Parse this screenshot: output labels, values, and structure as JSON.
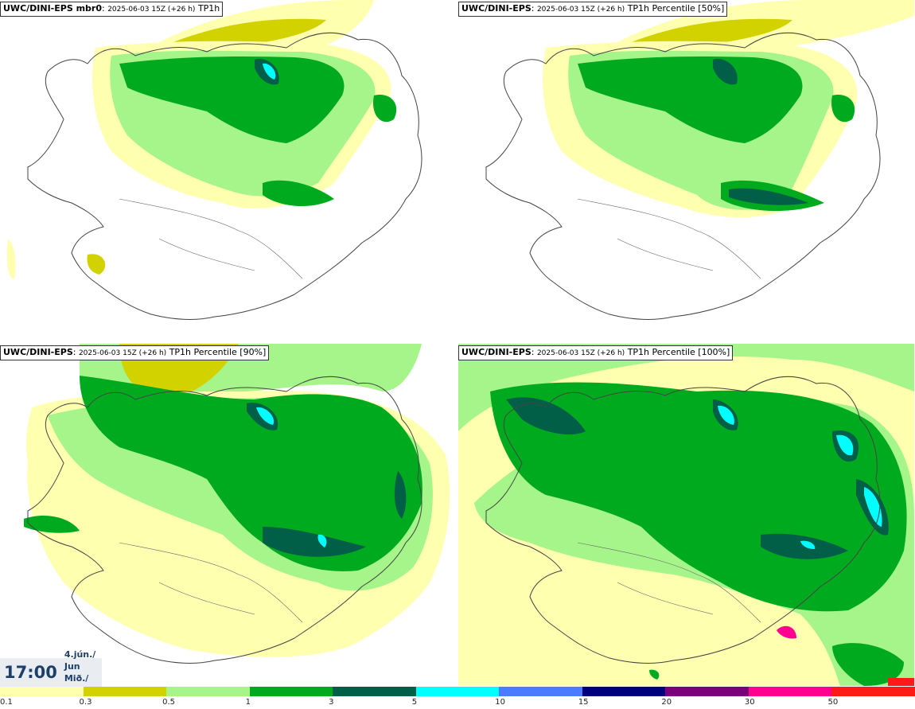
{
  "panels": [
    {
      "model": "UWC/DINI-EPS mbr0",
      "run": "2025-06-03 15Z (+26 h)",
      "field": "TP1h"
    },
    {
      "model": "UWC/DINI-EPS",
      "run": "2025-06-03 15Z (+26 h)",
      "field": "TP1h Percentile [50%]"
    },
    {
      "model": "UWC/DINI-EPS",
      "run": "2025-06-03 15Z (+26 h)",
      "field": "TP1h Percentile [90%]"
    },
    {
      "model": "UWC/DINI-EPS",
      "run": "2025-06-03 15Z (+26 h)",
      "field": "TP1h Percentile [100%]"
    }
  ],
  "valid_time": {
    "clock": "17:00",
    "date_line": "4.jún./ Jun",
    "day_line": "Mið./ Wed"
  },
  "legend": {
    "ticks": [
      "0.1",
      "0.3",
      "0.5",
      "1",
      "3",
      "5",
      "10",
      "15",
      "20",
      "30",
      "50"
    ],
    "colors": [
      "#ffffb0",
      "#d2d200",
      "#a6f58a",
      "#00aa1e",
      "#005f46",
      "#00ffff",
      "#4b7bff",
      "#00007a",
      "#7a007a",
      "#ff0090",
      "#ff1a1a"
    ]
  },
  "map_colors": {
    "sea_light": "#ffffb0",
    "ochre": "#d2d200",
    "light_green": "#a6f58a",
    "green": "#00aa1e",
    "dark_green": "#005f46",
    "cyan": "#00ffff",
    "coast": "#444444"
  }
}
